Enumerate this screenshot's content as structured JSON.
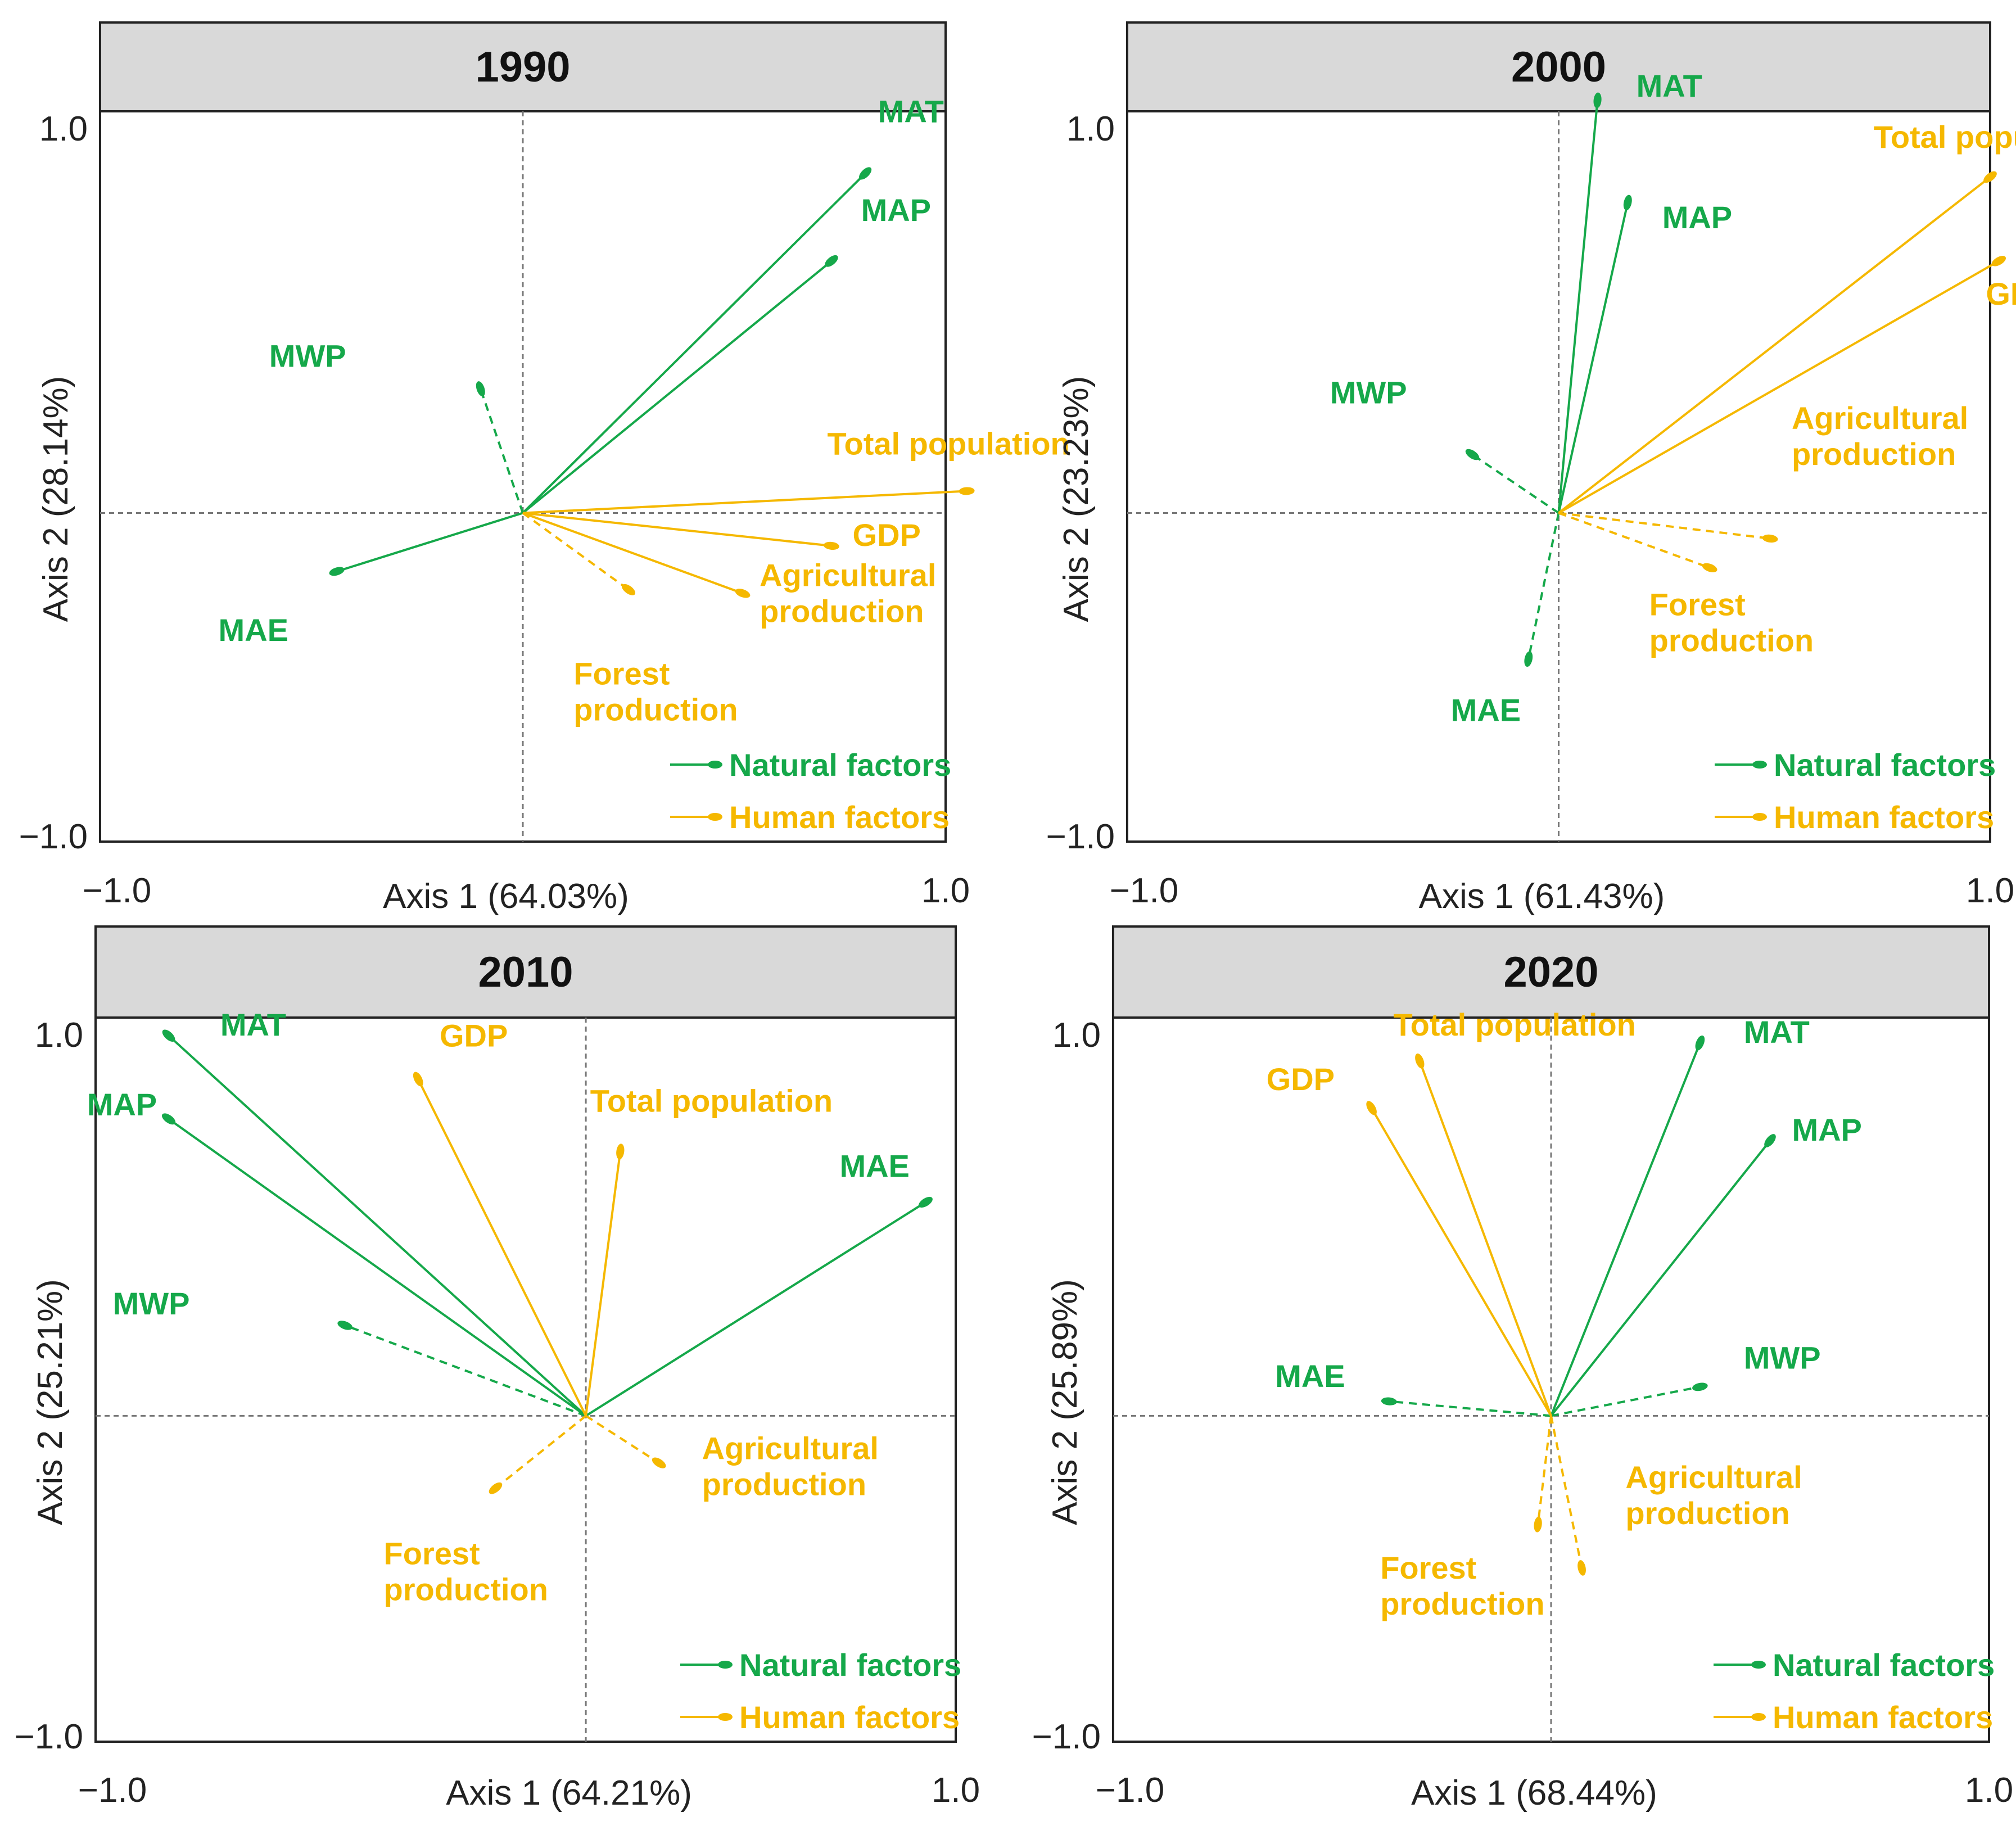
{
  "colors": {
    "natural": "#15a84a",
    "human": "#f5b800",
    "frame": "#222222",
    "title_bg": "#d9d9d9",
    "guide": "#777777"
  },
  "legend": {
    "natural": "Natural factors",
    "human": "Human factors"
  },
  "chart_data": [
    {
      "type": "biplot",
      "title": "1990",
      "xlabel": "Axis 1  (64.03%)",
      "ylabel": "Axis 2  (28.14%)",
      "xlim": [
        -1.0,
        1.0
      ],
      "ylim": [
        -1.0,
        1.0
      ],
      "x_ticks": [
        "−1.0",
        "1.0"
      ],
      "y_ticks": [
        "1.0",
        "−1.0"
      ],
      "origin": [
        0.0,
        -0.1
      ],
      "vectors": [
        {
          "name": "MAT",
          "group": "natural",
          "end": [
            0.81,
            0.83
          ],
          "dashed": false,
          "label": [
            "MAT"
          ],
          "label_at": [
            0.84,
            0.97
          ]
        },
        {
          "name": "MAP",
          "group": "natural",
          "end": [
            0.73,
            0.59
          ],
          "dashed": false,
          "label": [
            "MAP"
          ],
          "label_at": [
            0.8,
            0.7
          ]
        },
        {
          "name": "MWP",
          "group": "natural",
          "end": [
            -0.1,
            0.24
          ],
          "dashed": true,
          "label": [
            "MWP"
          ],
          "label_at": [
            -0.6,
            0.3
          ]
        },
        {
          "name": "MAE",
          "group": "natural",
          "end": [
            -0.44,
            -0.26
          ],
          "dashed": false,
          "label": [
            "MAE"
          ],
          "label_at": [
            -0.72,
            -0.45
          ]
        },
        {
          "name": "Total population",
          "group": "human",
          "end": [
            1.05,
            -0.04
          ],
          "dashed": false,
          "label": [
            "Total population"
          ],
          "label_at": [
            0.72,
            0.06
          ]
        },
        {
          "name": "GDP",
          "group": "human",
          "end": [
            0.73,
            -0.19
          ],
          "dashed": false,
          "label": [
            "GDP"
          ],
          "label_at": [
            0.78,
            -0.19
          ]
        },
        {
          "name": "Agricultural production",
          "group": "human",
          "end": [
            0.52,
            -0.32
          ],
          "dashed": false,
          "label": [
            "Agricultural",
            "production"
          ],
          "label_at": [
            0.56,
            -0.3
          ]
        },
        {
          "name": "Forest production",
          "group": "human",
          "end": [
            0.25,
            -0.31
          ],
          "dashed": true,
          "label": [
            "Forest",
            "production"
          ],
          "label_at": [
            0.12,
            -0.57
          ]
        }
      ]
    },
    {
      "type": "biplot",
      "title": "2000",
      "xlabel": "Axis 1  (61.43%)",
      "ylabel": "Axis 2  (23.23%)",
      "xlim": [
        -1.0,
        1.0
      ],
      "ylim": [
        -1.0,
        1.0
      ],
      "x_ticks": [
        "−1.0",
        "1.0"
      ],
      "y_ticks": [
        "1.0",
        "−1.0"
      ],
      "origin": [
        0.0,
        -0.1
      ],
      "vectors": [
        {
          "name": "MAT",
          "group": "natural",
          "end": [
            0.09,
            1.03
          ],
          "dashed": false,
          "label": [
            "MAT"
          ],
          "label_at": [
            0.18,
            1.04
          ]
        },
        {
          "name": "MAP",
          "group": "natural",
          "end": [
            0.16,
            0.75
          ],
          "dashed": false,
          "label": [
            "MAP"
          ],
          "label_at": [
            0.24,
            0.68
          ]
        },
        {
          "name": "MWP",
          "group": "natural",
          "end": [
            -0.2,
            0.06
          ],
          "dashed": true,
          "label": [
            "MWP"
          ],
          "label_at": [
            -0.53,
            0.2
          ]
        },
        {
          "name": "MAE",
          "group": "natural",
          "end": [
            -0.07,
            -0.5
          ],
          "dashed": true,
          "label": [
            "MAE"
          ],
          "label_at": [
            -0.25,
            -0.67
          ]
        },
        {
          "name": "Total population",
          "group": "human",
          "end": [
            1.0,
            0.82
          ],
          "dashed": false,
          "label": [
            "Total population"
          ],
          "label_at": [
            0.73,
            0.9
          ]
        },
        {
          "name": "GDP",
          "group": "human",
          "end": [
            1.02,
            0.59
          ],
          "dashed": false,
          "label": [
            "GDP"
          ],
          "label_at": [
            0.99,
            0.47
          ]
        },
        {
          "name": "Agricultural production",
          "group": "human",
          "end": [
            0.49,
            -0.17
          ],
          "dashed": true,
          "label": [
            "Agricultural",
            "production"
          ],
          "label_at": [
            0.54,
            0.13
          ]
        },
        {
          "name": "Forest production",
          "group": "human",
          "end": [
            0.35,
            -0.25
          ],
          "dashed": true,
          "label": [
            "Forest",
            "production"
          ],
          "label_at": [
            0.21,
            -0.38
          ]
        }
      ]
    },
    {
      "type": "biplot",
      "title": "2010",
      "xlabel": "Axis 1  (64.21%)",
      "ylabel": "Axis 2  (25.21%)",
      "xlim": [
        -1.0,
        1.0
      ],
      "ylim": [
        -1.0,
        1.0
      ],
      "x_ticks": [
        "−1.0",
        "1.0"
      ],
      "y_ticks": [
        "1.0",
        "−1.0"
      ],
      "origin": [
        0.14,
        -0.1
      ],
      "vectors": [
        {
          "name": "MAT",
          "group": "natural",
          "end": [
            -0.83,
            0.95
          ],
          "dashed": false,
          "label": [
            "MAT"
          ],
          "label_at": [
            -0.71,
            0.95
          ]
        },
        {
          "name": "MAP",
          "group": "natural",
          "end": [
            -0.83,
            0.72
          ],
          "dashed": false,
          "label": [
            "MAP"
          ],
          "label_at": [
            -1.02,
            0.73
          ]
        },
        {
          "name": "MWP",
          "group": "natural",
          "end": [
            -0.42,
            0.15
          ],
          "dashed": true,
          "label": [
            "MWP"
          ],
          "label_at": [
            -0.96,
            0.18
          ]
        },
        {
          "name": "MAE",
          "group": "natural",
          "end": [
            0.93,
            0.49
          ],
          "dashed": false,
          "label": [
            "MAE"
          ],
          "label_at": [
            0.73,
            0.56
          ]
        },
        {
          "name": "Total population",
          "group": "human",
          "end": [
            0.22,
            0.63
          ],
          "dashed": false,
          "label": [
            "Total population"
          ],
          "label_at": [
            0.15,
            0.74
          ]
        },
        {
          "name": "GDP",
          "group": "human",
          "end": [
            -0.25,
            0.83
          ],
          "dashed": false,
          "label": [
            "GDP"
          ],
          "label_at": [
            -0.2,
            0.92
          ]
        },
        {
          "name": "Agricultural production",
          "group": "human",
          "end": [
            0.31,
            -0.23
          ],
          "dashed": true,
          "label": [
            "Agricultural",
            "production"
          ],
          "label_at": [
            0.41,
            -0.22
          ]
        },
        {
          "name": "Forest production",
          "group": "human",
          "end": [
            -0.07,
            -0.3
          ],
          "dashed": true,
          "label": [
            "Forest",
            "production"
          ],
          "label_at": [
            -0.33,
            -0.51
          ]
        }
      ]
    },
    {
      "type": "biplot",
      "title": "2020",
      "xlabel": "Axis 1  (68.44%)",
      "ylabel": "Axis 2  (25.89%)",
      "xlim": [
        -1.0,
        1.0
      ],
      "ylim": [
        -1.0,
        1.0
      ],
      "x_ticks": [
        "−1.0",
        "1.0"
      ],
      "y_ticks": [
        "1.0",
        "−1.0"
      ],
      "origin": [
        0.0,
        -0.1
      ],
      "vectors": [
        {
          "name": "MAT",
          "group": "natural",
          "end": [
            0.34,
            0.93
          ],
          "dashed": false,
          "label": [
            "MAT"
          ],
          "label_at": [
            0.44,
            0.93
          ]
        },
        {
          "name": "MAP",
          "group": "natural",
          "end": [
            0.5,
            0.66
          ],
          "dashed": false,
          "label": [
            "MAP"
          ],
          "label_at": [
            0.55,
            0.66
          ]
        },
        {
          "name": "MWP",
          "group": "natural",
          "end": [
            0.34,
            -0.02
          ],
          "dashed": true,
          "label": [
            "MWP"
          ],
          "label_at": [
            0.44,
            0.03
          ]
        },
        {
          "name": "MAE",
          "group": "natural",
          "end": [
            -0.37,
            -0.06
          ],
          "dashed": true,
          "label": [
            "MAE"
          ],
          "label_at": [
            -0.63,
            -0.02
          ]
        },
        {
          "name": "Total population",
          "group": "human",
          "end": [
            -0.3,
            0.88
          ],
          "dashed": false,
          "label": [
            "Total population"
          ],
          "label_at": [
            -0.36,
            0.95
          ]
        },
        {
          "name": "GDP",
          "group": "human",
          "end": [
            -0.41,
            0.75
          ],
          "dashed": false,
          "label": [
            "GDP"
          ],
          "label_at": [
            -0.65,
            0.8
          ]
        },
        {
          "name": "Agricultural production",
          "group": "human",
          "end": [
            0.07,
            -0.52
          ],
          "dashed": true,
          "label": [
            "Agricultural",
            "production"
          ],
          "label_at": [
            0.17,
            -0.3
          ]
        },
        {
          "name": "Forest production",
          "group": "human",
          "end": [
            -0.03,
            -0.4
          ],
          "dashed": true,
          "label": [
            "Forest",
            "production"
          ],
          "label_at": [
            -0.39,
            -0.55
          ]
        }
      ]
    }
  ]
}
